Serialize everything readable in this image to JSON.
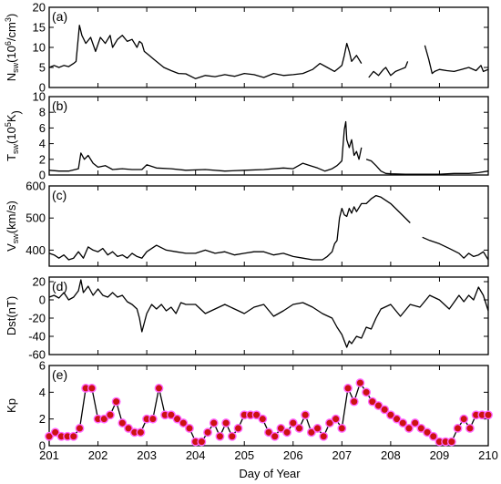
{
  "chart_data": {
    "type": "line",
    "xlabel": "Day of Year",
    "xlim": [
      201,
      210
    ],
    "x_ticks": [
      "201",
      "202",
      "203",
      "204",
      "205",
      "206",
      "207",
      "208",
      "209",
      "210"
    ],
    "panels": [
      {
        "label": "(a)",
        "ylabel_main": "N",
        "ylabel_sub": "sw",
        "ylabel_rest": "(10",
        "ylabel_sup": "6",
        "ylabel_end": "/cm",
        "ylabel_sup2": "3",
        "ylabel_close": ")",
        "ylim": [
          0,
          20
        ],
        "y_ticks": [
          "0",
          "5",
          "10",
          "15",
          "20"
        ],
        "series": [
          {
            "x": [
              201.0,
              201.1,
              201.2,
              201.3,
              201.4,
              201.5,
              201.55,
              201.62,
              201.67,
              201.75,
              201.85,
              201.95,
              202.05,
              202.15,
              202.25,
              202.3,
              202.4,
              202.5,
              202.6,
              202.7,
              202.8,
              202.85,
              202.9,
              202.95,
              203.05,
              203.15,
              203.25,
              203.35,
              203.5,
              203.65,
              203.8,
              204.0,
              204.2,
              204.4,
              204.6,
              204.8,
              205.0,
              205.2,
              205.4,
              205.6,
              205.8,
              206.0,
              206.2,
              206.4,
              206.55,
              206.7,
              206.85,
              206.95,
              207.0,
              207.05,
              207.1,
              207.15,
              207.2,
              207.3,
              207.4
            ],
            "y": [
              5,
              5.5,
              5,
              5.5,
              5.2,
              6,
              6.5,
              15.5,
              13,
              11,
              12.5,
              9,
              12.5,
              11,
              13,
              10,
              12,
              13,
              11.5,
              12,
              10,
              11.5,
              11,
              9,
              8,
              7,
              6,
              5,
              4.2,
              3.5,
              3.4,
              2.2,
              3,
              2.7,
              3.2,
              2.8,
              3.5,
              3.2,
              2.5,
              3.5,
              3,
              3.2,
              3.5,
              4.5,
              6,
              5,
              4,
              5,
              5.5,
              8,
              11,
              9,
              6.5,
              8,
              6
            ]
          },
          {
            "x": [
              207.55,
              207.65,
              207.75,
              207.85,
              207.9,
              208.0,
              208.1,
              208.2,
              208.3,
              208.35
            ],
            "y": [
              2.5,
              4,
              3,
              4.5,
              5,
              3,
              4,
              4.5,
              5,
              6.5
            ]
          },
          {
            "x": [
              208.7,
              208.78,
              208.85,
              208.9,
              209.0,
              209.15,
              209.3,
              209.45,
              209.6,
              209.75,
              209.85,
              209.9,
              210.0
            ],
            "y": [
              10.5,
              7,
              3.5,
              4,
              4.5,
              4.2,
              4,
              4.5,
              5,
              4.2,
              5.5,
              4,
              4.5
            ]
          }
        ]
      },
      {
        "label": "(b)",
        "ylabel_main": "T",
        "ylabel_sub": "sw",
        "ylabel_rest": "(10",
        "ylabel_sup": "5",
        "ylabel_end": "K",
        "ylabel_sup2": "",
        "ylabel_close": ")",
        "ylim": [
          0,
          10
        ],
        "y_ticks": [
          "0",
          "2",
          "4",
          "6",
          "8",
          "10"
        ],
        "series": [
          {
            "x": [
              201.0,
              201.2,
              201.4,
              201.6,
              201.65,
              201.72,
              201.8,
              201.9,
              202.0,
              202.15,
              202.3,
              202.5,
              202.7,
              202.9,
              203.0,
              203.2,
              203.5,
              203.8,
              204.2,
              204.6,
              205.0,
              205.4,
              205.8,
              206.0,
              206.2,
              206.35,
              206.5,
              206.65,
              206.8,
              206.9,
              206.95,
              207.0,
              207.02,
              207.05,
              207.08,
              207.1,
              207.15,
              207.2,
              207.25,
              207.3,
              207.35,
              207.4
            ],
            "y": [
              0.6,
              0.5,
              0.5,
              0.8,
              2.8,
              2,
              2.5,
              1.5,
              1,
              1.2,
              0.7,
              0.8,
              0.7,
              0.7,
              1.3,
              0.9,
              0.8,
              0.6,
              0.7,
              0.5,
              0.6,
              0.7,
              0.9,
              0.8,
              1.5,
              1.2,
              0.9,
              0.5,
              0.8,
              1.2,
              1.5,
              1.8,
              3.5,
              5.8,
              6.8,
              4.5,
              3.5,
              4.5,
              2.5,
              3,
              2,
              3.5
            ]
          },
          {
            "x": [
              207.5,
              207.6,
              207.7,
              207.8,
              207.9,
              208.0,
              208.3,
              208.5,
              208.8,
              209.0,
              209.3,
              209.6,
              209.8,
              210.0
            ],
            "y": [
              2,
              1.8,
              1.2,
              0.5,
              0.2,
              0.15,
              0.1,
              0.1,
              0.1,
              0.1,
              0.2,
              0.2,
              0.3,
              0.5
            ]
          }
        ]
      },
      {
        "label": "(c)",
        "ylabel_main": "V",
        "ylabel_sub": "sw",
        "ylabel_rest": "(km/s)",
        "ylabel_sup": "",
        "ylabel_end": "",
        "ylabel_sup2": "",
        "ylabel_close": "",
        "ylim": [
          350,
          600
        ],
        "y_ticks": [
          "400",
          "500",
          "600"
        ],
        "series": [
          {
            "x": [
              201.0,
              201.1,
              201.2,
              201.3,
              201.4,
              201.5,
              201.6,
              201.7,
              201.8,
              201.9,
              202.0,
              202.1,
              202.2,
              202.3,
              202.4,
              202.5,
              202.6,
              202.7,
              202.8,
              202.9,
              203.0,
              203.2,
              203.4,
              203.6,
              203.8,
              204.0,
              204.2,
              204.4,
              204.6,
              204.8,
              205.0,
              205.2,
              205.4,
              205.6,
              205.8,
              206.0,
              206.2,
              206.4,
              206.6,
              206.7,
              206.8,
              206.85,
              206.9,
              206.95,
              207.0,
              207.05,
              207.1,
              207.15,
              207.2,
              207.25,
              207.3,
              207.4,
              207.5,
              207.6,
              207.7,
              207.8,
              208.0,
              208.2,
              208.4
            ],
            "y": [
              390,
              385,
              375,
              385,
              370,
              375,
              395,
              375,
              410,
              400,
              395,
              405,
              385,
              395,
              380,
              385,
              375,
              390,
              380,
              375,
              395,
              415,
              400,
              395,
              390,
              390,
              400,
              390,
              395,
              385,
              390,
              395,
              395,
              385,
              390,
              380,
              375,
              370,
              370,
              380,
              395,
              420,
              430,
              500,
              530,
              510,
              505,
              530,
              515,
              535,
              520,
              545,
              545,
              560,
              570,
              565,
              545,
              515,
              485
            ]
          },
          {
            "x": [
              208.65,
              208.8,
              209.0,
              209.2,
              209.4,
              209.5,
              209.6,
              209.7,
              209.8,
              209.9,
              210.0
            ],
            "y": [
              440,
              430,
              420,
              405,
              390,
              375,
              390,
              380,
              385,
              395,
              370
            ]
          }
        ]
      },
      {
        "label": "(d)",
        "ylabel_main": "Dst(nT)",
        "ylabel_sub": "",
        "ylabel_rest": "",
        "ylabel_sup": "",
        "ylabel_end": "",
        "ylabel_sup2": "",
        "ylabel_close": "",
        "ylim": [
          -60,
          25
        ],
        "y_ticks": [
          "-60",
          "-40",
          "-20",
          "0",
          "20"
        ],
        "series": [
          {
            "x": [
              201.0,
              201.1,
              201.2,
              201.3,
              201.4,
              201.5,
              201.6,
              201.65,
              201.7,
              201.8,
              201.9,
              202.0,
              202.1,
              202.2,
              202.3,
              202.4,
              202.5,
              202.6,
              202.7,
              202.8,
              202.85,
              202.9,
              203.0,
              203.1,
              203.2,
              203.3,
              203.4,
              203.5,
              203.6,
              203.7,
              203.8,
              204.0,
              204.2,
              204.4,
              204.6,
              204.8,
              205.0,
              205.2,
              205.4,
              205.6,
              205.8,
              206.0,
              206.2,
              206.4,
              206.6,
              206.8,
              206.9,
              207.0,
              207.1,
              207.15,
              207.2,
              207.3,
              207.4,
              207.5,
              207.6,
              207.7,
              207.8,
              208.0,
              208.2,
              208.4,
              208.6,
              208.8,
              209.0,
              209.2,
              209.4,
              209.5,
              209.6,
              209.7,
              209.8,
              209.9,
              210.0
            ],
            "y": [
              3,
              5,
              2,
              8,
              0,
              3,
              10,
              22,
              8,
              15,
              5,
              12,
              5,
              3,
              8,
              3,
              5,
              -2,
              -5,
              -10,
              -20,
              -35,
              -15,
              -5,
              -10,
              -5,
              -12,
              -8,
              -15,
              -3,
              -5,
              -5,
              -15,
              -10,
              -5,
              -10,
              -15,
              -8,
              -5,
              -18,
              -12,
              -5,
              -3,
              -8,
              -15,
              -20,
              -30,
              -38,
              -52,
              -45,
              -48,
              -40,
              -42,
              -30,
              -32,
              -20,
              -10,
              -5,
              -18,
              -5,
              -8,
              5,
              0,
              -10,
              5,
              -2,
              5,
              0,
              14,
              5,
              -12
            ]
          }
        ]
      },
      {
        "label": "(e)",
        "ylabel_main": "Kp",
        "ylabel_sub": "",
        "ylabel_rest": "",
        "ylabel_sup": "",
        "ylabel_end": "",
        "ylabel_sup2": "",
        "ylabel_close": "",
        "ylim": [
          0,
          6
        ],
        "y_ticks": [
          "0",
          "2",
          "4",
          "6"
        ],
        "marker_color": "#cc1111",
        "marker_outline": "#ff66ff",
        "series": [
          {
            "x": [
              201.0,
              201.125,
              201.25,
              201.375,
              201.5,
              201.625,
              201.75,
              201.875,
              202.0,
              202.125,
              202.25,
              202.375,
              202.5,
              202.625,
              202.75,
              202.875,
              203.0,
              203.125,
              203.25,
              203.375,
              203.5,
              203.625,
              203.75,
              203.875,
              204.0,
              204.125,
              204.25,
              204.375,
              204.5,
              204.625,
              204.75,
              204.875,
              205.0,
              205.125,
              205.25,
              205.375,
              205.5,
              205.625,
              205.75,
              205.875,
              206.0,
              206.125,
              206.25,
              206.375,
              206.5,
              206.625,
              206.75,
              206.875,
              207.0,
              207.125,
              207.25,
              207.375,
              207.5,
              207.625,
              207.75,
              207.875,
              208.0,
              208.125,
              208.25,
              208.375,
              208.5,
              208.625,
              208.75,
              208.875,
              209.0,
              209.125,
              209.25,
              209.375,
              209.5,
              209.625,
              209.75,
              209.875,
              210.0
            ],
            "y": [
              0.7,
              1.0,
              0.7,
              0.7,
              0.7,
              1.3,
              4.3,
              4.3,
              2.0,
              2.0,
              2.3,
              3.3,
              1.7,
              1.3,
              1.0,
              1.0,
              2.0,
              2.0,
              4.3,
              2.3,
              2.3,
              2.0,
              1.7,
              1.3,
              0.3,
              0.3,
              1.0,
              1.7,
              0.7,
              1.7,
              0.7,
              1.3,
              2.3,
              2.3,
              2.3,
              2.0,
              1.0,
              0.7,
              1.3,
              1.0,
              1.7,
              1.3,
              2.3,
              1.0,
              1.3,
              0.7,
              1.7,
              2.0,
              1.3,
              4.3,
              3.3,
              4.7,
              4.0,
              3.3,
              3.0,
              2.7,
              2.3,
              2.0,
              1.7,
              1.3,
              1.7,
              1.3,
              1.0,
              0.7,
              0.3,
              0.3,
              0.3,
              1.3,
              2.0,
              1.3,
              2.3,
              2.3,
              2.3
            ]
          }
        ]
      }
    ]
  }
}
